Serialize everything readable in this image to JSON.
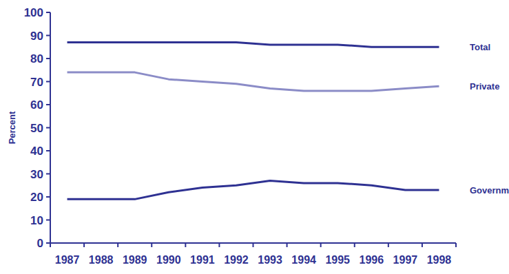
{
  "chart_data": {
    "type": "line",
    "y_label": "Percent",
    "categories": [
      "1987",
      "1988",
      "1989",
      "1990",
      "1991",
      "1992",
      "1993",
      "1994",
      "1995",
      "1996",
      "1997",
      "1998"
    ],
    "series": [
      {
        "name": "Total",
        "color": "#2e3192",
        "values": [
          87,
          87,
          87,
          87,
          87,
          87,
          86,
          86,
          86,
          85,
          85,
          85
        ]
      },
      {
        "name": "Private",
        "color": "#8b8cc7",
        "values": [
          74,
          74,
          74,
          71,
          70,
          69,
          67,
          66,
          66,
          66,
          67,
          68
        ]
      },
      {
        "name": "Government",
        "color": "#2e3192",
        "values": [
          19,
          19,
          19,
          22,
          24,
          25,
          27,
          26,
          26,
          25,
          23,
          23
        ]
      }
    ],
    "ylim": [
      0,
      100
    ],
    "yticks": [
      0,
      10,
      20,
      30,
      40,
      50,
      60,
      70,
      80,
      90,
      100
    ],
    "grid": false
  }
}
